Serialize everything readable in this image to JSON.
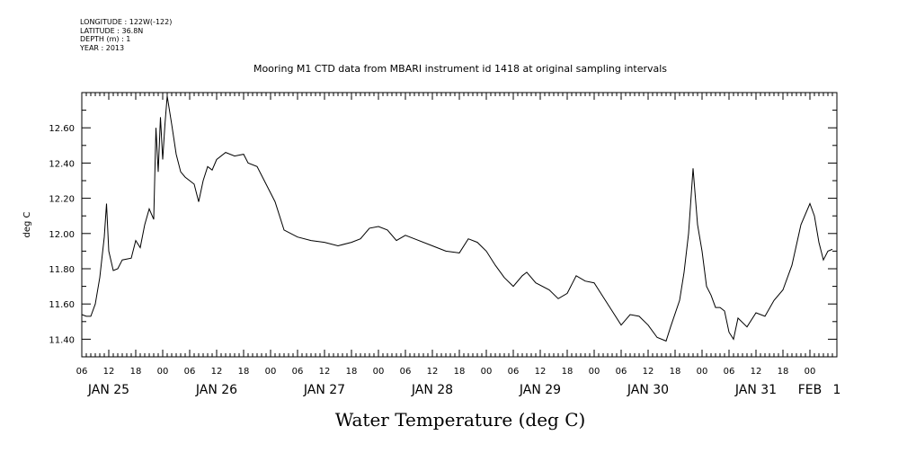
{
  "meta": {
    "longitude": "LONGITUDE : 122W(-122)",
    "latitude": "LATITUDE : 36.8N",
    "depth": "DEPTH (m) : 1",
    "year": "YEAR : 2013"
  },
  "chart_data": {
    "type": "line",
    "title": "Mooring M1 CTD data from MBARI instrument id 1418 at original sampling intervals",
    "xlabel": "Water Temperature (deg C)",
    "ylabel": "deg C",
    "xlim": [
      "2013-01-25T06:00",
      "2013-02-01T06:00"
    ],
    "ylim": [
      11.3,
      12.8
    ],
    "yticks": [
      11.4,
      11.6,
      11.8,
      12.0,
      12.2,
      12.4,
      12.6
    ],
    "ytick_labels": [
      "11.40",
      "11.60",
      "11.80",
      "12.00",
      "12.20",
      "12.40",
      "12.60"
    ],
    "hour_tick_labels": [
      "06",
      "12",
      "18",
      "00",
      "06",
      "12",
      "18",
      "00",
      "06",
      "12",
      "18",
      "00",
      "06",
      "12",
      "18",
      "00",
      "06",
      "12",
      "18",
      "00",
      "06",
      "12",
      "18",
      "00",
      "06",
      "12",
      "18",
      "00"
    ],
    "date_labels": [
      {
        "text": "JAN 25",
        "at": "2013-01-25T12:00"
      },
      {
        "text": "JAN 26",
        "at": "2013-01-26T12:00"
      },
      {
        "text": "JAN 27",
        "at": "2013-01-27T12:00"
      },
      {
        "text": "JAN 28",
        "at": "2013-01-28T12:00"
      },
      {
        "text": "JAN 29",
        "at": "2013-01-29T12:00"
      },
      {
        "text": "JAN 30",
        "at": "2013-01-30T12:00"
      },
      {
        "text": "JAN 31",
        "at": "2013-01-31T12:00"
      },
      {
        "text": "FEB",
        "at": "2013-02-01T00:00"
      },
      {
        "text": "1",
        "at": "2013-02-01T06:00"
      }
    ],
    "grid": false,
    "series": [
      {
        "color": "#000000",
        "points": [
          [
            "2013-01-25T06:00",
            11.54
          ],
          [
            "2013-01-25T07:00",
            11.53
          ],
          [
            "2013-01-25T08:00",
            11.53
          ],
          [
            "2013-01-25T09:00",
            11.6
          ],
          [
            "2013-01-25T10:00",
            11.75
          ],
          [
            "2013-01-25T11:00",
            11.98
          ],
          [
            "2013-01-25T11:30",
            12.17
          ],
          [
            "2013-01-25T12:00",
            11.9
          ],
          [
            "2013-01-25T13:00",
            11.79
          ],
          [
            "2013-01-25T14:00",
            11.8
          ],
          [
            "2013-01-25T15:00",
            11.85
          ],
          [
            "2013-01-25T17:00",
            11.86
          ],
          [
            "2013-01-25T18:00",
            11.96
          ],
          [
            "2013-01-25T19:00",
            11.92
          ],
          [
            "2013-01-25T20:00",
            12.05
          ],
          [
            "2013-01-25T21:00",
            12.14
          ],
          [
            "2013-01-25T22:00",
            12.08
          ],
          [
            "2013-01-25T22:30",
            12.6
          ],
          [
            "2013-01-25T23:00",
            12.35
          ],
          [
            "2013-01-25T23:30",
            12.66
          ],
          [
            "2013-01-26T00:00",
            12.42
          ],
          [
            "2013-01-26T00:30",
            12.62
          ],
          [
            "2013-01-26T01:00",
            12.78
          ],
          [
            "2013-01-26T02:00",
            12.62
          ],
          [
            "2013-01-26T03:00",
            12.45
          ],
          [
            "2013-01-26T04:00",
            12.35
          ],
          [
            "2013-01-26T05:00",
            12.32
          ],
          [
            "2013-01-26T06:00",
            12.3
          ],
          [
            "2013-01-26T07:00",
            12.28
          ],
          [
            "2013-01-26T08:00",
            12.18
          ],
          [
            "2013-01-26T09:00",
            12.3
          ],
          [
            "2013-01-26T10:00",
            12.38
          ],
          [
            "2013-01-26T11:00",
            12.36
          ],
          [
            "2013-01-26T12:00",
            12.42
          ],
          [
            "2013-01-26T14:00",
            12.46
          ],
          [
            "2013-01-26T16:00",
            12.44
          ],
          [
            "2013-01-26T18:00",
            12.45
          ],
          [
            "2013-01-26T19:00",
            12.4
          ],
          [
            "2013-01-26T21:00",
            12.38
          ],
          [
            "2013-01-26T23:00",
            12.28
          ],
          [
            "2013-01-27T01:00",
            12.18
          ],
          [
            "2013-01-27T03:00",
            12.02
          ],
          [
            "2013-01-27T06:00",
            11.98
          ],
          [
            "2013-01-27T09:00",
            11.96
          ],
          [
            "2013-01-27T12:00",
            11.95
          ],
          [
            "2013-01-27T15:00",
            11.93
          ],
          [
            "2013-01-27T18:00",
            11.95
          ],
          [
            "2013-01-27T20:00",
            11.97
          ],
          [
            "2013-01-27T22:00",
            12.03
          ],
          [
            "2013-01-28T00:00",
            12.04
          ],
          [
            "2013-01-28T02:00",
            12.02
          ],
          [
            "2013-01-28T04:00",
            11.96
          ],
          [
            "2013-01-28T06:00",
            11.99
          ],
          [
            "2013-01-28T08:00",
            11.97
          ],
          [
            "2013-01-28T12:00",
            11.93
          ],
          [
            "2013-01-28T15:00",
            11.9
          ],
          [
            "2013-01-28T18:00",
            11.89
          ],
          [
            "2013-01-28T20:00",
            11.97
          ],
          [
            "2013-01-28T22:00",
            11.95
          ],
          [
            "2013-01-29T00:00",
            11.9
          ],
          [
            "2013-01-29T02:00",
            11.82
          ],
          [
            "2013-01-29T04:00",
            11.75
          ],
          [
            "2013-01-29T06:00",
            11.7
          ],
          [
            "2013-01-29T08:00",
            11.76
          ],
          [
            "2013-01-29T09:00",
            11.78
          ],
          [
            "2013-01-29T11:00",
            11.72
          ],
          [
            "2013-01-29T14:00",
            11.68
          ],
          [
            "2013-01-29T16:00",
            11.63
          ],
          [
            "2013-01-29T18:00",
            11.66
          ],
          [
            "2013-01-29T20:00",
            11.76
          ],
          [
            "2013-01-29T22:00",
            11.73
          ],
          [
            "2013-01-30T00:00",
            11.72
          ],
          [
            "2013-01-30T02:00",
            11.64
          ],
          [
            "2013-01-30T04:00",
            11.56
          ],
          [
            "2013-01-30T06:00",
            11.48
          ],
          [
            "2013-01-30T08:00",
            11.54
          ],
          [
            "2013-01-30T10:00",
            11.53
          ],
          [
            "2013-01-30T12:00",
            11.48
          ],
          [
            "2013-01-30T14:00",
            11.41
          ],
          [
            "2013-01-30T16:00",
            11.39
          ],
          [
            "2013-01-30T17:00",
            11.47
          ],
          [
            "2013-01-30T19:00",
            11.62
          ],
          [
            "2013-01-30T20:00",
            11.78
          ],
          [
            "2013-01-30T21:00",
            12.0
          ],
          [
            "2013-01-30T22:00",
            12.37
          ],
          [
            "2013-01-30T23:00",
            12.05
          ],
          [
            "2013-01-31T00:00",
            11.9
          ],
          [
            "2013-01-31T01:00",
            11.7
          ],
          [
            "2013-01-31T02:00",
            11.65
          ],
          [
            "2013-01-31T03:00",
            11.58
          ],
          [
            "2013-01-31T04:00",
            11.58
          ],
          [
            "2013-01-31T05:00",
            11.56
          ],
          [
            "2013-01-31T06:00",
            11.44
          ],
          [
            "2013-01-31T07:00",
            11.4
          ],
          [
            "2013-01-31T08:00",
            11.52
          ],
          [
            "2013-01-31T10:00",
            11.47
          ],
          [
            "2013-01-31T12:00",
            11.55
          ],
          [
            "2013-01-31T14:00",
            11.53
          ],
          [
            "2013-01-31T16:00",
            11.62
          ],
          [
            "2013-01-31T18:00",
            11.68
          ],
          [
            "2013-01-31T20:00",
            11.82
          ],
          [
            "2013-01-31T22:00",
            12.05
          ],
          [
            "2013-02-01T00:00",
            12.17
          ],
          [
            "2013-02-01T01:00",
            12.1
          ],
          [
            "2013-02-01T02:00",
            11.95
          ],
          [
            "2013-02-01T03:00",
            11.85
          ],
          [
            "2013-02-01T04:00",
            11.9
          ],
          [
            "2013-02-01T05:00",
            11.91
          ]
        ]
      }
    ]
  }
}
